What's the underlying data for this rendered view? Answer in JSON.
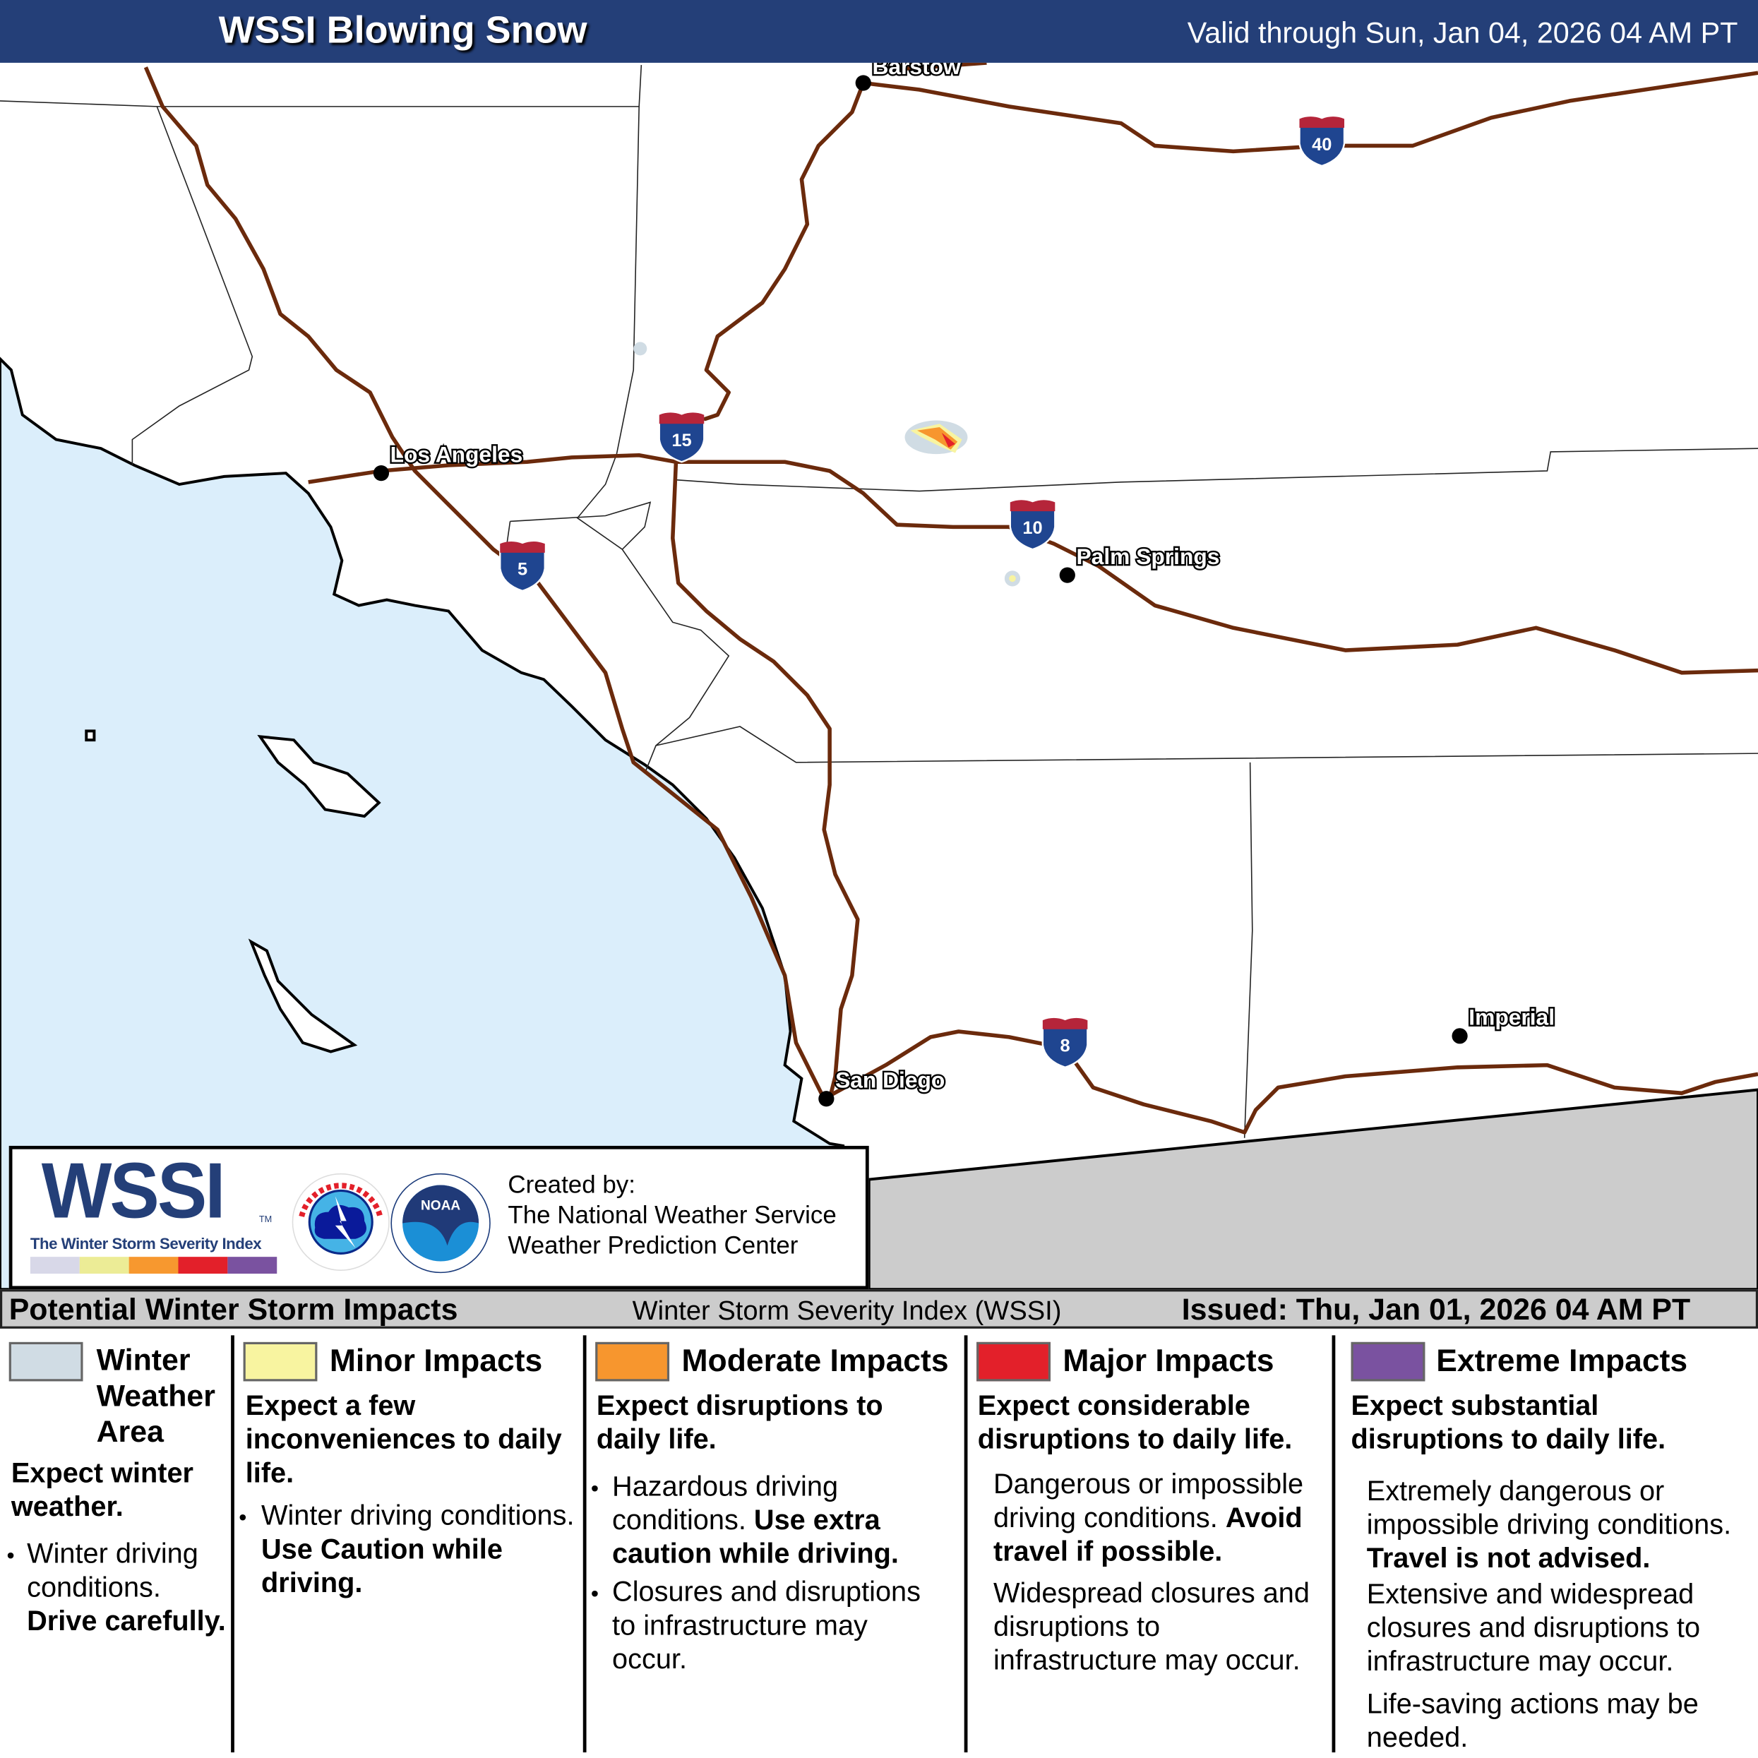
{
  "header": {
    "title": "WSSI Blowing Snow",
    "valid": "Valid through Sun, Jan 04, 2026 04 AM PT"
  },
  "map": {
    "cities": [
      {
        "name": "Barstow"
      },
      {
        "name": "Los Angeles"
      },
      {
        "name": "Palm Springs"
      },
      {
        "name": "San Diego"
      },
      {
        "name": "Imperial"
      }
    ],
    "interstates": [
      "15",
      "5",
      "10",
      "40",
      "8"
    ],
    "colors": {
      "ocean": "#dbeefb",
      "land": "#ffffff",
      "mexico": "#cccccc",
      "roads": "#6b2a0c",
      "header": "#243f78"
    }
  },
  "logo": {
    "wssi": "WSSI",
    "tm": "TM",
    "subtitle": "The Winter Storm Severity Index",
    "nws_text": "NATIONAL WEATHER SERVICE",
    "noaa_text": "NOAA",
    "created_by": "Created by:",
    "org1": "The National Weather Service",
    "org2": "Weather Prediction Center"
  },
  "bar": {
    "left": "Potential Winter Storm Impacts",
    "middle": "Winter Storm Severity Index (WSSI)",
    "issued": "Issued: Thu, Jan 01, 2026 04 AM PT"
  },
  "legend": [
    {
      "color": "#d0dce4",
      "title": "Winter Weather Area",
      "title_lines": [
        "Winter",
        "Weather",
        "Area"
      ],
      "expect": "Expect winter weather.",
      "text1": "Winter driving conditions.",
      "bold1": "Drive carefully."
    },
    {
      "color": "#f8f4a0",
      "title": "Minor Impacts",
      "expect": "Expect a few inconveniences to daily life.",
      "text1": "Winter driving conditions.",
      "bold1": "Use Caution while driving."
    },
    {
      "color": "#f7962e",
      "title": "Moderate Impacts",
      "expect": "Expect disruptions to daily life.",
      "text1": "Hazardous driving conditions.",
      "bold1": "Use extra caution while driving.",
      "text2": "Closures and disruptions to infrastructure may occur."
    },
    {
      "color": "#e3202a",
      "title": "Major Impacts",
      "expect": "Expect considerable disruptions to daily life.",
      "text1": "Dangerous or impossible driving conditions.",
      "bold1": "Avoid travel if possible.",
      "text2": "Widespread closures and disruptions to infrastructure may occur."
    },
    {
      "color": "#7a52a0",
      "title": "Extreme Impacts",
      "expect": "Expect substantial disruptions to daily life.",
      "text1": "Extremely dangerous or impossible driving conditions.",
      "bold1": "Travel is not advised.",
      "text2": "Extensive and widespread closures and disruptions to infrastructure may occur.",
      "text3": "Life-saving actions may be needed."
    }
  ],
  "wssi_scale_colors": [
    "#d8d8e8",
    "#ecec96",
    "#f7982f",
    "#e3202a",
    "#7a52a0"
  ]
}
